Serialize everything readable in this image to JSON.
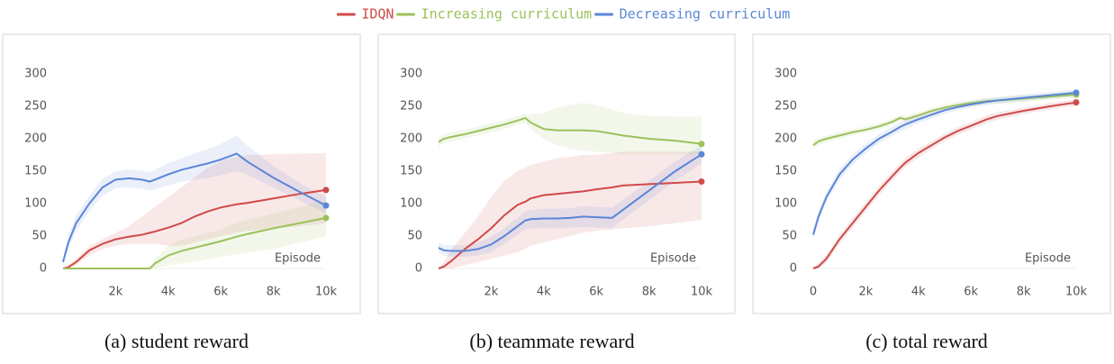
{
  "chart_data": [
    {
      "type": "line",
      "title": "(a) student reward",
      "xlabel": "Episode",
      "x": [
        0,
        200,
        500,
        1000,
        1500,
        2000,
        2500,
        3000,
        3300,
        3500,
        4000,
        4500,
        5000,
        5500,
        6000,
        6600,
        7000,
        8000,
        9000,
        10000
      ],
      "xlim": [
        0,
        10000
      ],
      "ylim": [
        0,
        320
      ],
      "xticks": [
        {
          "value": 2000,
          "label": "2k"
        },
        {
          "value": 4000,
          "label": "4k"
        },
        {
          "value": 6000,
          "label": "6k"
        },
        {
          "value": 8000,
          "label": "8k"
        },
        {
          "value": 10000,
          "label": "10k"
        }
      ],
      "yticks": [
        0,
        50,
        100,
        150,
        200,
        250,
        300
      ],
      "series": [
        {
          "name": "IDQN",
          "color": "#d04a4a",
          "values": [
            0,
            2,
            10,
            28,
            38,
            45,
            49,
            52,
            55,
            57,
            63,
            70,
            80,
            88,
            94,
            99,
            101,
            108,
            115,
            121
          ],
          "lower": [
            0,
            0,
            5,
            20,
            30,
            35,
            38,
            38,
            38,
            38,
            35,
            35,
            40,
            45,
            50,
            55,
            58,
            62,
            65,
            70
          ],
          "upper": [
            0,
            5,
            15,
            35,
            45,
            55,
            65,
            80,
            90,
            95,
            110,
            125,
            140,
            155,
            165,
            172,
            175,
            176,
            177,
            178
          ]
        },
        {
          "name": "Increasing curriculum",
          "color": "#9dc15b",
          "values": [
            0,
            0,
            0,
            0,
            0,
            0,
            0,
            0,
            0,
            8,
            20,
            27,
            32,
            37,
            42,
            49,
            53,
            62,
            70,
            78
          ],
          "lower": [
            0,
            0,
            0,
            0,
            0,
            0,
            0,
            0,
            0,
            0,
            5,
            8,
            10,
            14,
            18,
            22,
            25,
            30,
            40,
            50
          ],
          "upper": [
            0,
            0,
            0,
            0,
            0,
            0,
            0,
            0,
            2,
            15,
            35,
            45,
            50,
            55,
            60,
            70,
            75,
            85,
            95,
            105
          ]
        },
        {
          "name": "Decreasing curriculum",
          "color": "#5b86d6",
          "values": [
            10,
            40,
            70,
            100,
            125,
            137,
            139,
            137,
            134,
            137,
            145,
            152,
            157,
            162,
            168,
            177,
            165,
            140,
            118,
            97
          ],
          "lower": [
            5,
            30,
            58,
            88,
            112,
            124,
            125,
            123,
            120,
            122,
            128,
            134,
            137,
            140,
            144,
            150,
            145,
            125,
            105,
            85
          ],
          "upper": [
            15,
            50,
            82,
            112,
            138,
            150,
            153,
            151,
            148,
            152,
            162,
            170,
            177,
            184,
            192,
            205,
            190,
            158,
            132,
            110
          ]
        }
      ]
    },
    {
      "type": "line",
      "title": "(b) teammate reward",
      "xlabel": "Episode",
      "x": [
        0,
        200,
        500,
        1000,
        1500,
        2000,
        2500,
        3000,
        3300,
        3500,
        4000,
        4500,
        5000,
        5500,
        6000,
        6600,
        7000,
        8000,
        9000,
        10000
      ],
      "xlim": [
        0,
        10000
      ],
      "ylim": [
        0,
        320
      ],
      "xticks": [
        {
          "value": 2000,
          "label": "2k"
        },
        {
          "value": 4000,
          "label": "4k"
        },
        {
          "value": 6000,
          "label": "6k"
        },
        {
          "value": 8000,
          "label": "8k"
        },
        {
          "value": 10000,
          "label": "10k"
        }
      ],
      "yticks": [
        0,
        50,
        100,
        150,
        200,
        250,
        300
      ],
      "series": [
        {
          "color": "#d04a4a",
          "values": [
            0,
            3,
            12,
            30,
            45,
            62,
            82,
            98,
            103,
            108,
            113,
            115,
            117,
            119,
            122,
            125,
            128,
            130,
            132,
            134
          ],
          "lower": [
            0,
            0,
            0,
            5,
            10,
            15,
            20,
            25,
            30,
            35,
            40,
            45,
            50,
            55,
            58,
            60,
            62,
            65,
            70,
            75
          ],
          "upper": [
            0,
            10,
            30,
            55,
            80,
            110,
            135,
            150,
            155,
            160,
            165,
            170,
            172,
            175,
            175,
            178,
            180,
            180,
            180,
            180
          ]
        },
        {
          "color": "#9dc15b",
          "values": [
            195,
            200,
            203,
            207,
            212,
            217,
            222,
            228,
            232,
            225,
            215,
            213,
            213,
            213,
            212,
            208,
            205,
            200,
            197,
            192
          ],
          "lower": [
            188,
            193,
            196,
            200,
            205,
            210,
            215,
            221,
            225,
            215,
            200,
            190,
            185,
            182,
            180,
            178,
            176,
            176,
            176,
            176
          ],
          "upper": [
            202,
            207,
            210,
            214,
            219,
            224,
            229,
            235,
            239,
            238,
            240,
            248,
            252,
            255,
            252,
            245,
            240,
            235,
            234,
            234
          ]
        },
        {
          "color": "#5b86d6",
          "values": [
            32,
            28,
            27,
            27,
            30,
            37,
            50,
            65,
            74,
            76,
            77,
            77,
            78,
            80,
            79,
            78,
            90,
            120,
            150,
            176
          ],
          "lower": [
            25,
            20,
            18,
            18,
            20,
            25,
            38,
            52,
            60,
            62,
            62,
            62,
            63,
            64,
            63,
            62,
            75,
            105,
            135,
            162
          ],
          "upper": [
            40,
            36,
            36,
            36,
            40,
            49,
            62,
            78,
            88,
            90,
            92,
            92,
            93,
            96,
            95,
            94,
            105,
            135,
            165,
            190
          ]
        }
      ]
    },
    {
      "type": "line",
      "title": "(c) total reward",
      "xlabel": "Episode",
      "x": [
        0,
        200,
        500,
        1000,
        1500,
        2000,
        2500,
        3000,
        3300,
        3500,
        4000,
        4500,
        5000,
        5500,
        6000,
        6600,
        7000,
        8000,
        9000,
        10000
      ],
      "xlim": [
        0,
        10000
      ],
      "ylim": [
        0,
        320
      ],
      "xticks": [
        0,
        {
          "value": 2000,
          "label": "2k"
        },
        {
          "value": 4000,
          "label": "4k"
        },
        {
          "value": 6000,
          "label": "6k"
        },
        {
          "value": 8000,
          "label": "8k"
        },
        {
          "value": 10000,
          "label": "10k"
        }
      ],
      "yticks": [
        0,
        50,
        100,
        150,
        200,
        250,
        300
      ],
      "series": [
        {
          "color": "#d04a4a",
          "values": [
            0,
            3,
            15,
            45,
            70,
            95,
            120,
            142,
            155,
            163,
            178,
            190,
            202,
            212,
            220,
            230,
            235,
            243,
            250,
            256
          ],
          "lower": [
            0,
            0,
            9,
            38,
            63,
            88,
            113,
            135,
            148,
            156,
            171,
            184,
            196,
            206,
            214,
            224,
            229,
            238,
            245,
            251
          ],
          "upper": [
            2,
            8,
            21,
            52,
            77,
            102,
            127,
            149,
            162,
            170,
            185,
            196,
            208,
            218,
            226,
            236,
            241,
            248,
            255,
            261
          ]
        },
        {
          "color": "#9dc15b",
          "values": [
            190,
            196,
            200,
            205,
            210,
            214,
            219,
            226,
            232,
            230,
            236,
            243,
            248,
            252,
            255,
            258,
            259,
            262,
            265,
            268
          ],
          "lower": [
            183,
            190,
            195,
            200,
            205,
            209,
            214,
            221,
            227,
            225,
            231,
            238,
            243,
            247,
            250,
            253,
            254,
            257,
            260,
            263
          ],
          "upper": [
            197,
            202,
            205,
            210,
            215,
            219,
            224,
            231,
            237,
            235,
            241,
            248,
            253,
            257,
            260,
            263,
            264,
            267,
            270,
            273
          ]
        },
        {
          "color": "#5b86d6",
          "values": [
            52,
            80,
            110,
            145,
            168,
            185,
            200,
            211,
            218,
            222,
            230,
            237,
            244,
            249,
            253,
            257,
            259,
            263,
            267,
            271
          ],
          "lower": [
            45,
            72,
            102,
            137,
            160,
            178,
            193,
            204,
            211,
            215,
            224,
            231,
            238,
            244,
            248,
            252,
            254,
            258,
            262,
            266
          ],
          "upper": [
            59,
            88,
            118,
            153,
            176,
            192,
            207,
            218,
            225,
            229,
            236,
            243,
            250,
            254,
            258,
            262,
            264,
            268,
            272,
            276
          ]
        }
      ]
    }
  ]
}
